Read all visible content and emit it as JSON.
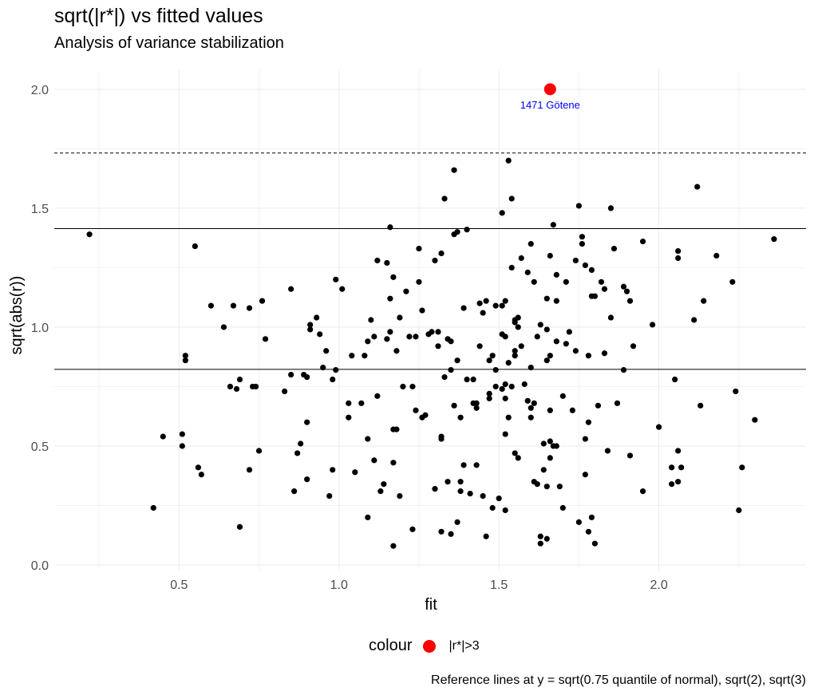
{
  "chart_data": {
    "type": "scatter",
    "title": "sqrt(|r*|) vs fitted values",
    "subtitle": "Analysis of variance stabilization",
    "xlabel": "fit",
    "ylabel": "sqrt(abs(r))",
    "xlim": [
      0.11,
      2.46
    ],
    "ylim": [
      -0.02,
      2.08
    ],
    "xticks": [
      0.5,
      1.0,
      1.5,
      2.0
    ],
    "xtick_labels": [
      "0.5",
      "1.0",
      "1.5",
      "2.0"
    ],
    "yticks": [
      0.0,
      0.5,
      1.0,
      1.5,
      2.0
    ],
    "ytick_labels": [
      "0.0",
      "0.5",
      "1.0",
      "1.5",
      "2.0"
    ],
    "grid": true,
    "reference_lines": [
      {
        "y": 0.8224,
        "style": "solid"
      },
      {
        "y": 1.4142,
        "style": "solid"
      },
      {
        "y": 1.7321,
        "style": "dashed"
      }
    ],
    "highlight": {
      "x": 1.66,
      "y": 2.0,
      "color": "#ff0000",
      "label": "1471 Götene"
    },
    "legend": {
      "title": "colour",
      "label": "|r*|>3",
      "position": "bottom"
    },
    "caption": "Reference lines at y = sqrt(0.75 quantile of normal), sqrt(2), sqrt(3)",
    "points": [
      [
        0.22,
        1.39
      ],
      [
        0.42,
        0.24
      ],
      [
        0.45,
        0.54
      ],
      [
        0.51,
        0.5
      ],
      [
        0.51,
        0.55
      ],
      [
        0.52,
        0.88
      ],
      [
        0.52,
        0.86
      ],
      [
        0.55,
        1.34
      ],
      [
        0.56,
        0.41
      ],
      [
        0.57,
        0.38
      ],
      [
        0.6,
        1.09
      ],
      [
        0.64,
        1.0
      ],
      [
        0.66,
        0.75
      ],
      [
        0.67,
        1.09
      ],
      [
        0.68,
        0.74
      ],
      [
        0.69,
        0.78
      ],
      [
        0.69,
        0.16
      ],
      [
        0.72,
        1.08
      ],
      [
        0.72,
        0.4
      ],
      [
        0.73,
        0.75
      ],
      [
        0.74,
        0.75
      ],
      [
        0.75,
        0.48
      ],
      [
        0.76,
        1.11
      ],
      [
        0.77,
        0.95
      ],
      [
        0.83,
        0.73
      ],
      [
        0.85,
        1.16
      ],
      [
        0.85,
        0.8
      ],
      [
        0.86,
        0.31
      ],
      [
        0.87,
        0.47
      ],
      [
        0.88,
        0.51
      ],
      [
        0.89,
        0.8
      ],
      [
        0.9,
        0.79
      ],
      [
        0.9,
        0.6
      ],
      [
        0.9,
        0.36
      ],
      [
        0.91,
        1.01
      ],
      [
        0.91,
        0.99
      ],
      [
        0.93,
        1.04
      ],
      [
        0.94,
        0.97
      ],
      [
        0.95,
        0.83
      ],
      [
        0.96,
        0.9
      ],
      [
        0.97,
        0.29
      ],
      [
        0.98,
        0.78
      ],
      [
        0.98,
        0.4
      ],
      [
        0.99,
        1.2
      ],
      [
        0.99,
        0.82
      ],
      [
        1.01,
        1.16
      ],
      [
        1.03,
        0.68
      ],
      [
        1.03,
        0.62
      ],
      [
        1.04,
        0.88
      ],
      [
        1.05,
        0.39
      ],
      [
        1.07,
        0.68
      ],
      [
        1.08,
        0.88
      ],
      [
        1.09,
        0.94
      ],
      [
        1.09,
        0.53
      ],
      [
        1.09,
        0.2
      ],
      [
        1.1,
        1.03
      ],
      [
        1.11,
        0.44
      ],
      [
        1.11,
        0.96
      ],
      [
        1.12,
        0.71
      ],
      [
        1.12,
        1.28
      ],
      [
        1.13,
        0.31
      ],
      [
        1.14,
        0.34
      ],
      [
        1.15,
        0.95
      ],
      [
        1.15,
        1.27
      ],
      [
        1.16,
        0.98
      ],
      [
        1.16,
        1.42
      ],
      [
        1.16,
        1.12
      ],
      [
        1.17,
        0.57
      ],
      [
        1.17,
        1.21
      ],
      [
        1.17,
        0.43
      ],
      [
        1.17,
        0.08
      ],
      [
        1.18,
        0.57
      ],
      [
        1.18,
        0.9
      ],
      [
        1.19,
        1.04
      ],
      [
        1.19,
        0.29
      ],
      [
        1.2,
        0.75
      ],
      [
        1.21,
        1.15
      ],
      [
        1.22,
        0.96
      ],
      [
        1.23,
        0.75
      ],
      [
        1.23,
        0.15
      ],
      [
        1.24,
        0.96
      ],
      [
        1.24,
        0.65
      ],
      [
        1.25,
        1.33
      ],
      [
        1.25,
        1.19
      ],
      [
        1.26,
        0.62
      ],
      [
        1.26,
        1.07
      ],
      [
        1.27,
        0.63
      ],
      [
        1.28,
        0.97
      ],
      [
        1.29,
        0.98
      ],
      [
        1.3,
        1.28
      ],
      [
        1.3,
        0.32
      ],
      [
        1.31,
        0.92
      ],
      [
        1.31,
        0.98
      ],
      [
        1.32,
        1.31
      ],
      [
        1.32,
        0.54
      ],
      [
        1.32,
        0.53
      ],
      [
        1.32,
        0.14
      ],
      [
        1.33,
        1.54
      ],
      [
        1.33,
        0.79
      ],
      [
        1.34,
        0.95
      ],
      [
        1.34,
        0.35
      ],
      [
        1.35,
        0.94
      ],
      [
        1.35,
        0.82
      ],
      [
        1.35,
        0.13
      ],
      [
        1.36,
        1.66
      ],
      [
        1.36,
        1.39
      ],
      [
        1.36,
        0.67
      ],
      [
        1.37,
        1.4
      ],
      [
        1.37,
        0.86
      ],
      [
        1.37,
        0.18
      ],
      [
        1.38,
        0.35
      ],
      [
        1.38,
        0.62
      ],
      [
        1.38,
        0.31
      ],
      [
        1.39,
        1.08
      ],
      [
        1.39,
        0.42
      ],
      [
        1.4,
        1.41
      ],
      [
        1.4,
        0.78
      ],
      [
        1.41,
        0.3
      ],
      [
        1.42,
        0.78
      ],
      [
        1.42,
        0.68
      ],
      [
        1.43,
        0.66
      ],
      [
        1.43,
        0.42
      ],
      [
        1.43,
        0.68
      ],
      [
        1.44,
        0.92
      ],
      [
        1.44,
        1.1
      ],
      [
        1.45,
        1.06
      ],
      [
        1.45,
        0.29
      ],
      [
        1.46,
        1.11
      ],
      [
        1.46,
        0.12
      ],
      [
        1.47,
        0.7
      ],
      [
        1.47,
        0.86
      ],
      [
        1.47,
        0.72
      ],
      [
        1.48,
        0.24
      ],
      [
        1.48,
        0.88
      ],
      [
        1.49,
        0.82
      ],
      [
        1.49,
        0.75
      ],
      [
        1.49,
        1.09
      ],
      [
        1.5,
        0.28
      ],
      [
        1.51,
        1.48
      ],
      [
        1.51,
        0.97
      ],
      [
        1.51,
        1.09
      ],
      [
        1.51,
        0.74
      ],
      [
        1.52,
        0.76
      ],
      [
        1.52,
        0.23
      ],
      [
        1.52,
        0.96
      ],
      [
        1.52,
        1.11
      ],
      [
        1.52,
        0.7
      ],
      [
        1.52,
        0.55
      ],
      [
        1.53,
        1.7
      ],
      [
        1.53,
        0.62
      ],
      [
        1.53,
        0.85
      ],
      [
        1.54,
        1.25
      ],
      [
        1.54,
        1.54
      ],
      [
        1.54,
        0.75
      ],
      [
        1.55,
        0.88
      ],
      [
        1.55,
        0.9
      ],
      [
        1.55,
        1.03
      ],
      [
        1.55,
        1.02
      ],
      [
        1.55,
        0.47
      ],
      [
        1.56,
        1.0
      ],
      [
        1.56,
        1.04
      ],
      [
        1.56,
        0.45
      ],
      [
        1.57,
        1.29
      ],
      [
        1.57,
        0.92
      ],
      [
        1.58,
        0.76
      ],
      [
        1.59,
        1.23
      ],
      [
        1.59,
        0.69
      ],
      [
        1.6,
        1.35
      ],
      [
        1.6,
        0.83
      ],
      [
        1.6,
        0.66
      ],
      [
        1.6,
        0.62
      ],
      [
        1.61,
        1.19
      ],
      [
        1.61,
        0.68
      ],
      [
        1.61,
        0.35
      ],
      [
        1.62,
        0.34
      ],
      [
        1.62,
        0.96
      ],
      [
        1.63,
        0.12
      ],
      [
        1.63,
        0.09
      ],
      [
        1.63,
        1.01
      ],
      [
        1.64,
        0.51
      ],
      [
        1.64,
        0.4
      ],
      [
        1.65,
        0.99
      ],
      [
        1.65,
        1.12
      ],
      [
        1.65,
        0.11
      ],
      [
        1.65,
        0.86
      ],
      [
        1.65,
        0.33
      ],
      [
        1.66,
        0.65
      ],
      [
        1.66,
        0.88
      ],
      [
        1.66,
        0.52
      ],
      [
        1.66,
        0.45
      ],
      [
        1.66,
        1.3
      ],
      [
        1.67,
        1.43
      ],
      [
        1.67,
        0.5
      ],
      [
        1.68,
        1.22
      ],
      [
        1.68,
        0.5
      ],
      [
        1.68,
        0.94
      ],
      [
        1.68,
        1.11
      ],
      [
        1.69,
        0.33
      ],
      [
        1.7,
        0.71
      ],
      [
        1.7,
        0.24
      ],
      [
        1.71,
        1.19
      ],
      [
        1.71,
        0.93
      ],
      [
        1.72,
        0.98
      ],
      [
        1.73,
        0.65
      ],
      [
        1.74,
        0.9
      ],
      [
        1.74,
        1.28
      ],
      [
        1.75,
        1.51
      ],
      [
        1.75,
        0.18
      ],
      [
        1.76,
        1.35
      ],
      [
        1.76,
        1.38
      ],
      [
        1.77,
        0.53
      ],
      [
        1.77,
        0.38
      ],
      [
        1.77,
        1.26
      ],
      [
        1.78,
        0.14
      ],
      [
        1.78,
        0.88
      ],
      [
        1.78,
        0.6
      ],
      [
        1.79,
        1.13
      ],
      [
        1.79,
        1.24
      ],
      [
        1.79,
        0.2
      ],
      [
        1.8,
        1.13
      ],
      [
        1.8,
        0.09
      ],
      [
        1.81,
        0.67
      ],
      [
        1.82,
        1.19
      ],
      [
        1.83,
        0.89
      ],
      [
        1.83,
        1.16
      ],
      [
        1.84,
        0.48
      ],
      [
        1.85,
        1.5
      ],
      [
        1.85,
        1.04
      ],
      [
        1.86,
        1.33
      ],
      [
        1.87,
        0.68
      ],
      [
        1.89,
        0.82
      ],
      [
        1.89,
        1.17
      ],
      [
        1.9,
        1.15
      ],
      [
        1.91,
        0.46
      ],
      [
        1.91,
        1.11
      ],
      [
        1.92,
        0.92
      ],
      [
        1.95,
        1.36
      ],
      [
        1.95,
        0.31
      ],
      [
        1.98,
        1.01
      ],
      [
        2.0,
        0.58
      ],
      [
        2.04,
        0.34
      ],
      [
        2.04,
        0.41
      ],
      [
        2.05,
        0.78
      ],
      [
        2.06,
        1.32
      ],
      [
        2.06,
        1.29
      ],
      [
        2.06,
        0.35
      ],
      [
        2.06,
        0.48
      ],
      [
        2.07,
        0.41
      ],
      [
        2.11,
        1.03
      ],
      [
        2.12,
        1.59
      ],
      [
        2.13,
        0.67
      ],
      [
        2.14,
        1.11
      ],
      [
        2.18,
        1.3
      ],
      [
        2.23,
        1.19
      ],
      [
        2.24,
        0.73
      ],
      [
        2.25,
        0.23
      ],
      [
        2.26,
        0.41
      ],
      [
        2.3,
        0.61
      ],
      [
        2.36,
        1.37
      ]
    ]
  }
}
